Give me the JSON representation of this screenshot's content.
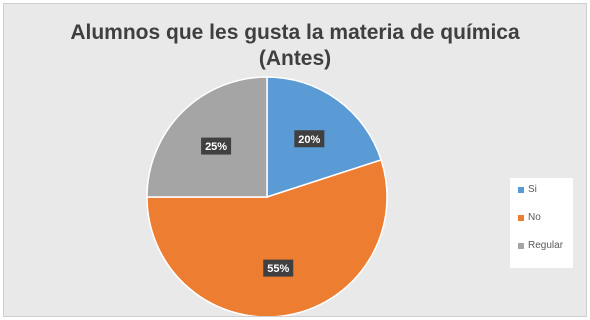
{
  "chart_data": {
    "type": "pie",
    "title_lines": [
      "Alumnos que les gusta la materia de química",
      "(Antes)"
    ],
    "slices": [
      {
        "label": "Si",
        "value": 20,
        "display": "20%",
        "color": "#5b9bd5"
      },
      {
        "label": "No",
        "value": 55,
        "display": "55%",
        "color": "#ed7d31"
      },
      {
        "label": "Regular",
        "value": 25,
        "display": "25%",
        "color": "#a5a5a5"
      }
    ],
    "legend_position": "right"
  }
}
